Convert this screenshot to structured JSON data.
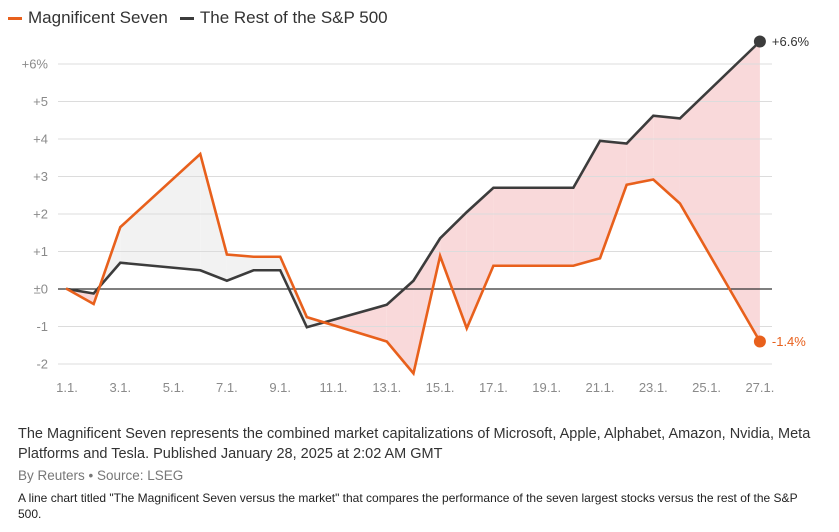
{
  "chart_data": {
    "type": "line",
    "title": "",
    "xlabel": "",
    "ylabel": "",
    "x": [
      "1.1.",
      "2.1.",
      "3.1.",
      "6.1.",
      "7.1.",
      "8.1.",
      "9.1.",
      "10.1.",
      "13.1.",
      "14.1.",
      "15.1.",
      "16.1.",
      "17.1.",
      "20.1.",
      "21.1.",
      "22.1.",
      "23.1.",
      "24.1.",
      "27.1."
    ],
    "series": [
      {
        "name": "Magnificent Seven",
        "color": "#e8601c",
        "values": [
          0,
          -0.4,
          1.65,
          3.6,
          0.92,
          0.86,
          0.86,
          -0.75,
          -1.4,
          -2.25,
          0.88,
          -1.05,
          0.62,
          0.62,
          0.82,
          2.78,
          2.92,
          2.28,
          -1.4
        ]
      },
      {
        "name": "The Rest of the S&P 500",
        "color": "#3c3c3c",
        "values": [
          0,
          -0.12,
          0.7,
          0.5,
          0.22,
          0.5,
          0.5,
          -1.02,
          -0.42,
          0.22,
          1.35,
          2.05,
          2.7,
          2.7,
          3.95,
          3.88,
          4.62,
          4.55,
          6.6
        ]
      }
    ],
    "x_tick_labels": [
      "1.1.",
      "3.1.",
      "5.1.",
      "7.1.",
      "9.1.",
      "11.1.",
      "13.1.",
      "15.1.",
      "17.1.",
      "19.1.",
      "21.1.",
      "23.1.",
      "25.1.",
      "27.1."
    ],
    "y_ticks": [
      {
        "value": 6,
        "label": "+6%"
      },
      {
        "value": 5,
        "label": "+5"
      },
      {
        "value": 4,
        "label": "+4"
      },
      {
        "value": 3,
        "label": "+3"
      },
      {
        "value": 2,
        "label": "+2"
      },
      {
        "value": 1,
        "label": "+1"
      },
      {
        "value": 0,
        "label": "±0"
      },
      {
        "value": -1,
        "label": "-1"
      },
      {
        "value": -2,
        "label": "-2"
      }
    ],
    "ylim": [
      -2.4,
      6.8
    ],
    "end_labels": {
      "rest": "+6.6%",
      "mag7": "-1.4%"
    },
    "fill_colors": {
      "mag7_ahead": "#f2f2f2",
      "rest_ahead": "#f9d9da"
    },
    "grid": true,
    "legend_position": "top-left"
  },
  "legend": [
    {
      "label": "Magnificent Seven",
      "color": "#e8601c"
    },
    {
      "label": "The Rest of the S&P 500",
      "color": "#3c3c3c"
    }
  ],
  "caption": "The Magnificent Seven represents the combined market capitalizations of Microsoft, Apple, Alphabet, Amazon, Nvidia, Meta Platforms and Tesla. Published January 28, 2025 at 2:02 AM GMT",
  "byline": "By Reuters • Source: LSEG",
  "alt_text": "A line chart titled \"The Magnificent Seven versus the market\" that compares the performance of the seven largest stocks versus the rest of the S&P 500."
}
